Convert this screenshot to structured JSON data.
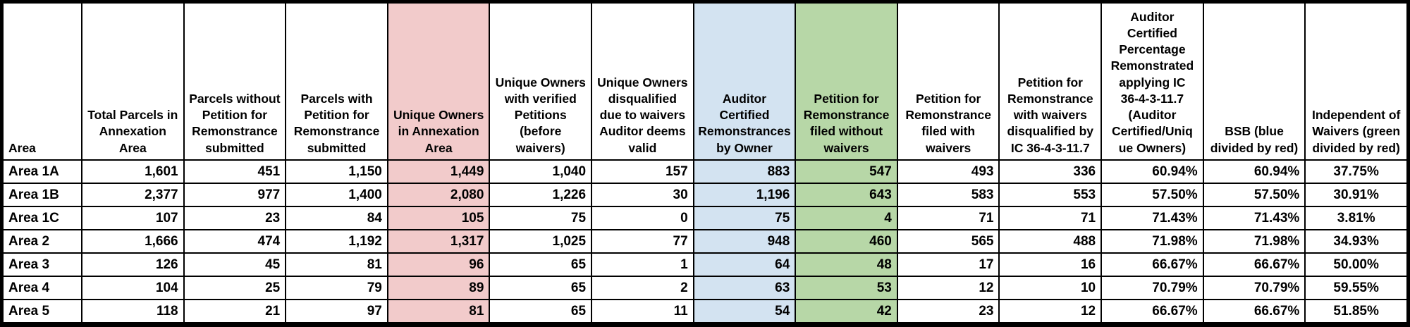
{
  "colors": {
    "highlight_pink": "#F2CBCB",
    "highlight_blue": "#D3E3F1",
    "highlight_green": "#B7D7A7",
    "grid_line": "#000000",
    "cell_background": "#FFFFFF",
    "text": "#000000"
  },
  "table": {
    "columns": [
      {
        "id": "area",
        "label": "Area",
        "halign": "left",
        "dalign": "left",
        "fill": null
      },
      {
        "id": "total-parcels",
        "label": "Total Parcels in\nAnnexation\nArea",
        "halign": "center",
        "dalign": "right",
        "fill": null
      },
      {
        "id": "parcels-without-petition",
        "label": "Parcels without\nPetition for\nRemonstrance\nsubmitted",
        "halign": "center",
        "dalign": "right",
        "fill": null
      },
      {
        "id": "parcels-with-petition",
        "label": "Parcels with\nPetition for\nRemonstrance\nsubmitted",
        "halign": "center",
        "dalign": "right",
        "fill": null
      },
      {
        "id": "unique-owners",
        "label": "Unique Owners\nin Annexation\nArea",
        "halign": "center",
        "dalign": "right",
        "fill": "pink"
      },
      {
        "id": "unique-owners-verified",
        "label": "Unique Owners\nwith verified\nPetitions\n(before\nwaivers)",
        "halign": "center",
        "dalign": "right",
        "fill": null
      },
      {
        "id": "unique-owners-disqualified",
        "label": "Unique Owners\ndisqualified\ndue to waivers\nAuditor deems\nvalid",
        "halign": "center",
        "dalign": "right",
        "fill": null
      },
      {
        "id": "auditor-certified-remonstrances",
        "label": "Auditor\nCertified\nRemonstrances\nby Owner",
        "halign": "center",
        "dalign": "right",
        "fill": "blue"
      },
      {
        "id": "petition-without-waivers",
        "label": "Petition for\nRemonstrance\nfiled without\nwaivers",
        "halign": "center",
        "dalign": "right",
        "fill": "green"
      },
      {
        "id": "petition-with-waivers",
        "label": "Petition for\nRemonstrance\nfiled with\nwaivers",
        "halign": "center",
        "dalign": "right",
        "fill": null
      },
      {
        "id": "petition-waivers-disqualified",
        "label": "Petition for\nRemonstrance\nwith waivers\ndisqualified by\nIC 36-4-3-11.7",
        "halign": "center",
        "dalign": "right",
        "fill": null
      },
      {
        "id": "auditor-certified-percentage",
        "label": "Auditor\nCertified\nPercentage\nRemonstrated\napplying IC\n36-4-3-11.7\n(Auditor\nCertified/Uniq\nue Owners)",
        "halign": "center",
        "dalign": "right",
        "fill": null
      },
      {
        "id": "bsb",
        "label": "BSB (blue\ndivided by red)",
        "halign": "center",
        "dalign": "right",
        "fill": null
      },
      {
        "id": "independent-of-waivers",
        "label": "Independent of\nWaivers (green\ndivided by red)",
        "halign": "center",
        "dalign": "center",
        "fill": null
      }
    ],
    "rows": [
      {
        "cells": [
          "Area 1A",
          "1,601",
          "451",
          "1,150",
          "1,449",
          "1,040",
          "157",
          "883",
          "547",
          "493",
          "336",
          "60.94%",
          "60.94%",
          "37.75%"
        ]
      },
      {
        "cells": [
          "Area 1B",
          "2,377",
          "977",
          "1,400",
          "2,080",
          "1,226",
          "30",
          "1,196",
          "643",
          "583",
          "553",
          "57.50%",
          "57.50%",
          "30.91%"
        ]
      },
      {
        "cells": [
          "Area 1C",
          "107",
          "23",
          "84",
          "105",
          "75",
          "0",
          "75",
          "4",
          "71",
          "71",
          "71.43%",
          "71.43%",
          "3.81%"
        ]
      },
      {
        "cells": [
          "Area 2",
          "1,666",
          "474",
          "1,192",
          "1,317",
          "1,025",
          "77",
          "948",
          "460",
          "565",
          "488",
          "71.98%",
          "71.98%",
          "34.93%"
        ]
      },
      {
        "cells": [
          "Area 3",
          "126",
          "45",
          "81",
          "96",
          "65",
          "1",
          "64",
          "48",
          "17",
          "16",
          "66.67%",
          "66.67%",
          "50.00%"
        ]
      },
      {
        "cells": [
          "Area 4",
          "104",
          "25",
          "79",
          "89",
          "65",
          "2",
          "63",
          "53",
          "12",
          "10",
          "70.79%",
          "70.79%",
          "59.55%"
        ]
      },
      {
        "cells": [
          "Area 5",
          "118",
          "21",
          "97",
          "81",
          "65",
          "11",
          "54",
          "42",
          "23",
          "12",
          "66.67%",
          "66.67%",
          "51.85%"
        ]
      }
    ]
  }
}
